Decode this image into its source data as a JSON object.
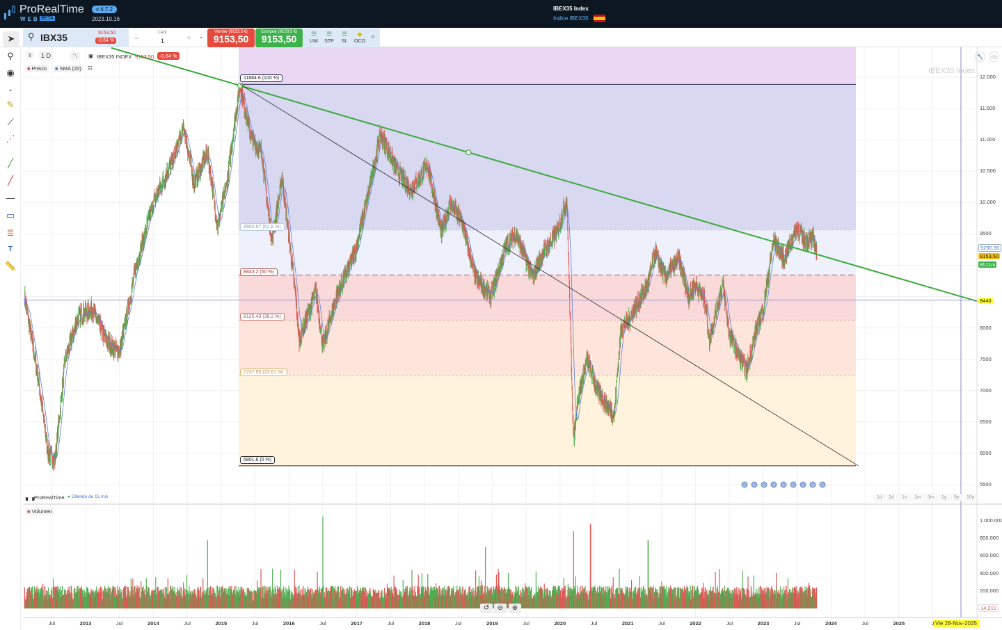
{
  "app": {
    "name": "ProRealTime",
    "edition": "WEB",
    "badge": "BETA",
    "version": "v 4.7.2",
    "date": "2023.10.16"
  },
  "header": {
    "title": "IBEX35 Index",
    "subtitle": "Indice IBEX35",
    "flag": "spain-flag"
  },
  "toolbar": {
    "symbol": "IBX35",
    "last_price": "9153,50",
    "change": "-0,64 %",
    "qty_label": "Cant",
    "qty_value": "1",
    "minus": "−",
    "plus": "+",
    "sell_label": "Vender (9153,5 €)",
    "sell_price": "9153,50",
    "buy_label": "Comprar (9153,5 €)",
    "buy_price": "9153,50",
    "orders": [
      "LIM",
      "STP",
      "SL",
      "OCO"
    ],
    "collapse": "«"
  },
  "chart_header": {
    "timeframe": "1 D",
    "instrument": "IBEX35 INDEX",
    "price": "9153,50",
    "change": "-0.64 %",
    "legend_price": "Precio",
    "legend_sma": "SMA (20)",
    "watermark": "IBEX35 Index"
  },
  "colors": {
    "up": "#4caf50",
    "down": "#e05555",
    "sma": "#5b7fd6",
    "trendline": "#3aaa3a",
    "sell": "#e44b3e",
    "buy": "#3bb24a"
  },
  "footer": {
    "brand": "ProRealTime",
    "delay": "Diferido de 15 min",
    "volume_label": "Volumen"
  },
  "zoom_buttons": [
    "1d",
    "2d",
    "1s",
    "1m",
    "3m",
    "1y",
    "5y",
    "10y"
  ],
  "price_tags": {
    "sma": "9290,35",
    "last": "9153,50",
    "countdown": "8h11m",
    "crosshair": "8446",
    "volume_last": "14.210",
    "crosshair_date": "Vie 28-Nov-2025"
  },
  "chart_data": {
    "type": "line",
    "title": "IBEX35 Index",
    "y_ticks": [
      "12.000",
      "11.500",
      "11.000",
      "10.500",
      "10.000",
      "9500",
      "9000",
      "8500",
      "8000",
      "7500",
      "7000",
      "6500",
      "6000",
      "5500"
    ],
    "ylim": [
      5500,
      12000
    ],
    "x_ticks": [
      "Jul",
      "2013",
      "Jul",
      "2014",
      "Jul",
      "2015",
      "Jul",
      "2016",
      "Jul",
      "2017",
      "Jul",
      "2018",
      "Jul",
      "2019",
      "Jul",
      "2020",
      "Jul",
      "2021",
      "Jul",
      "2022",
      "Jul",
      "2023",
      "Jul",
      "2024",
      "Jul",
      "2025",
      "J"
    ],
    "price_series": [
      [
        2012.1,
        8500
      ],
      [
        2012.3,
        7200
      ],
      [
        2012.45,
        6000
      ],
      [
        2012.55,
        5900
      ],
      [
        2012.7,
        7500
      ],
      [
        2012.9,
        8200
      ],
      [
        2013.1,
        8300
      ],
      [
        2013.3,
        7800
      ],
      [
        2013.5,
        7600
      ],
      [
        2013.75,
        9000
      ],
      [
        2014.0,
        10000
      ],
      [
        2014.3,
        10700
      ],
      [
        2014.45,
        11200
      ],
      [
        2014.6,
        10300
      ],
      [
        2014.8,
        10800
      ],
      [
        2014.95,
        9600
      ],
      [
        2015.1,
        10400
      ],
      [
        2015.2,
        11300
      ],
      [
        2015.28,
        11866
      ],
      [
        2015.45,
        11000
      ],
      [
        2015.6,
        10800
      ],
      [
        2015.7,
        9800
      ],
      [
        2015.75,
        9400
      ],
      [
        2015.9,
        10400
      ],
      [
        2016.1,
        8500
      ],
      [
        2016.15,
        7800
      ],
      [
        2016.4,
        8600
      ],
      [
        2016.5,
        7700
      ],
      [
        2016.7,
        8500
      ],
      [
        2016.9,
        9000
      ],
      [
        2017.0,
        9300
      ],
      [
        2017.2,
        10300
      ],
      [
        2017.35,
        11100
      ],
      [
        2017.6,
        10500
      ],
      [
        2017.8,
        10200
      ],
      [
        2018.05,
        10600
      ],
      [
        2018.25,
        9500
      ],
      [
        2018.38,
        10000
      ],
      [
        2018.55,
        9700
      ],
      [
        2018.75,
        8800
      ],
      [
        2018.98,
        8500
      ],
      [
        2019.2,
        9300
      ],
      [
        2019.35,
        9500
      ],
      [
        2019.6,
        8800
      ],
      [
        2019.75,
        9200
      ],
      [
        2019.95,
        9500
      ],
      [
        2020.1,
        10050
      ],
      [
        2020.2,
        6200
      ],
      [
        2020.25,
        6800
      ],
      [
        2020.4,
        7500
      ],
      [
        2020.55,
        7000
      ],
      [
        2020.8,
        6600
      ],
      [
        2020.9,
        8000
      ],
      [
        2021.0,
        8100
      ],
      [
        2021.3,
        8700
      ],
      [
        2021.4,
        9200
      ],
      [
        2021.55,
        8800
      ],
      [
        2021.75,
        9100
      ],
      [
        2021.9,
        8500
      ],
      [
        2022.0,
        8700
      ],
      [
        2022.15,
        8400
      ],
      [
        2022.2,
        7800
      ],
      [
        2022.4,
        8700
      ],
      [
        2022.5,
        7900
      ],
      [
        2022.75,
        7300
      ],
      [
        2022.9,
        8000
      ],
      [
        2023.0,
        8300
      ],
      [
        2023.15,
        9400
      ],
      [
        2023.3,
        9100
      ],
      [
        2023.5,
        9600
      ],
      [
        2023.6,
        9400
      ],
      [
        2023.75,
        9400
      ],
      [
        2023.79,
        9153.5
      ]
    ],
    "fibonacci": [
      {
        "label": "11884.6 (100 %)",
        "value": 11884.6
      },
      {
        "label": "9560.97 (61.8 %)",
        "value": 9560.97
      },
      {
        "label": "8843.2 (50 %)",
        "value": 8843.2
      },
      {
        "label": "8125.43 (38.2 %)",
        "value": 8125.43
      },
      {
        "label": "7237.95 (23.61 %)",
        "value": 7237.95
      },
      {
        "label": "5801.8 (0 %)",
        "value": 5801.8
      }
    ],
    "fib_colors": [
      "#ead7f3",
      "#d9d8f1",
      "#eef0fb",
      "#f9d9d9",
      "#fde5dc",
      "#fff3dd"
    ],
    "trendline": [
      [
        2015.28,
        11866
      ],
      [
        2018.65,
        10800
      ]
    ],
    "diagonal": [
      [
        2015.28,
        11884.6
      ],
      [
        2024.4,
        5801.8
      ]
    ],
    "horizontal_line": 8446,
    "volume": {
      "y_ticks": [
        "1.000.000",
        "800.000",
        "600.000",
        "400.000",
        "200.000"
      ],
      "ylim": [
        0,
        1100000
      ],
      "typical": 200000,
      "spikes": [
        [
          2016.5,
          1050000
        ],
        [
          2020.45,
          960000
        ],
        [
          2020.2,
          880000
        ],
        [
          2014.8,
          780000
        ],
        [
          2018.9,
          700000
        ],
        [
          2021.3,
          780000
        ]
      ]
    }
  }
}
